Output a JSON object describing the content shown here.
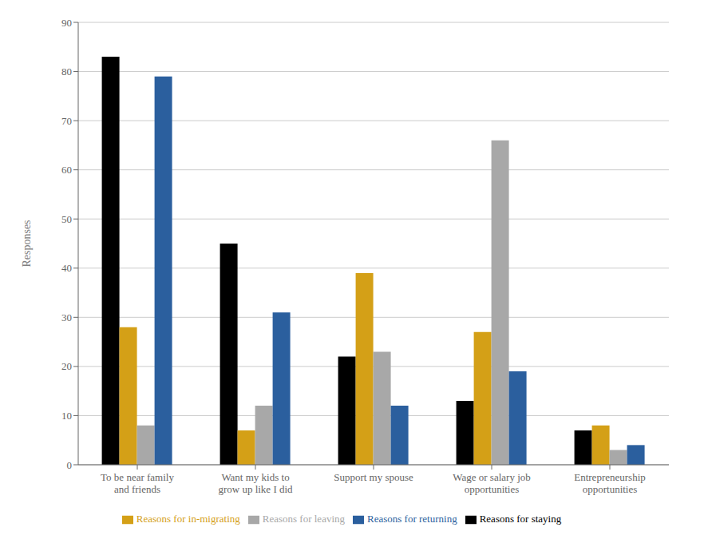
{
  "chart_data": {
    "type": "bar",
    "categories": [
      "To be near family\nand friends",
      "Want my kids to\ngrow up like I did",
      "Support my spouse",
      "Wage or salary job\nopportunities",
      "Entrepreneurship\nopportunities"
    ],
    "series": [
      {
        "name": "Reasons for staying",
        "color": "#000000",
        "values": [
          83,
          45,
          22,
          13,
          7
        ]
      },
      {
        "name": "Reasons for in-migrating",
        "color": "#D4A017",
        "values": [
          28,
          7,
          39,
          27,
          8
        ]
      },
      {
        "name": "Reasons for leaving",
        "color": "#A8A8A8",
        "values": [
          8,
          12,
          23,
          66,
          3
        ]
      },
      {
        "name": "Reasons for returning",
        "color": "#2B5F9E",
        "values": [
          79,
          31,
          12,
          19,
          4
        ]
      }
    ],
    "ylabel": "Responses",
    "ylim": [
      0,
      90
    ],
    "yticks": [
      0,
      10,
      20,
      30,
      40,
      50,
      60,
      70,
      80,
      90
    ],
    "grid": true,
    "legend": "bottom"
  }
}
